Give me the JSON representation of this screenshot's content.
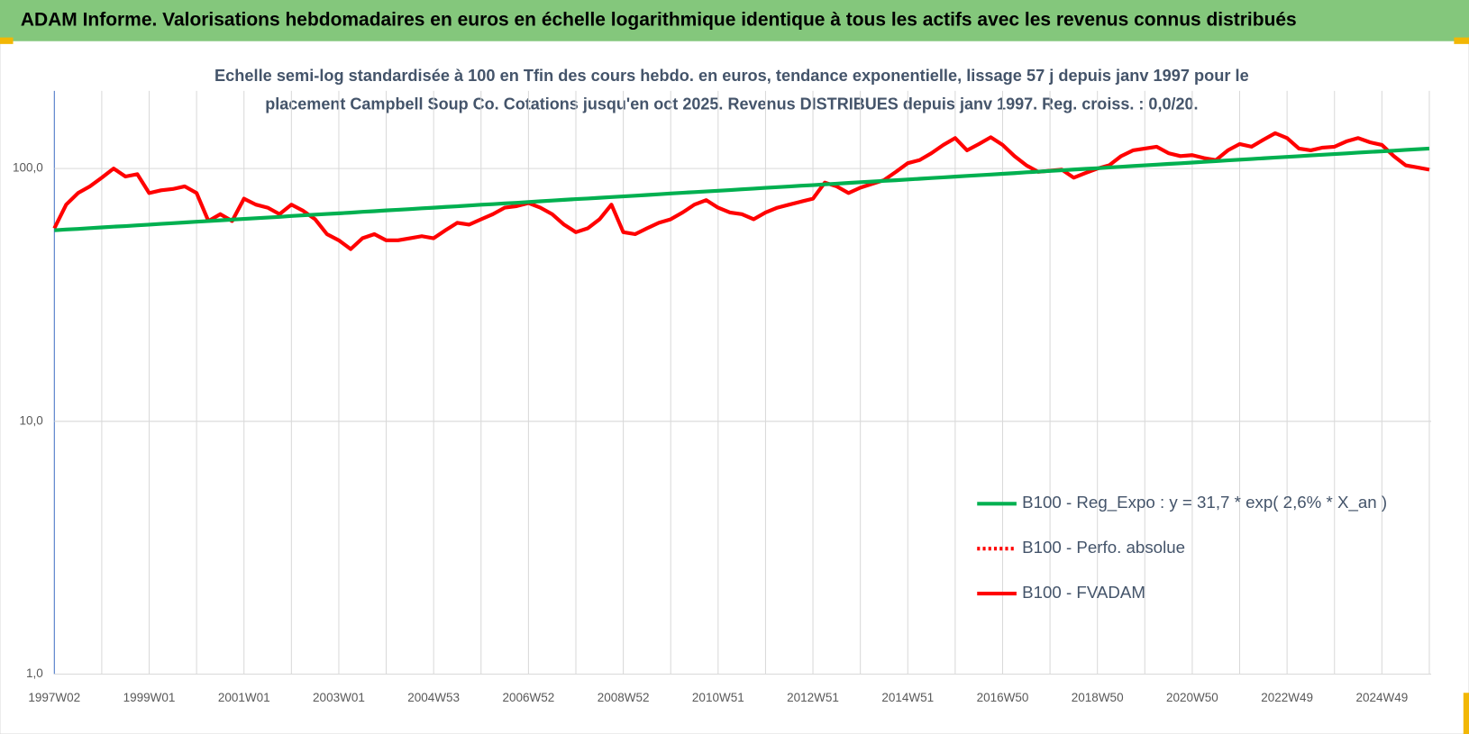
{
  "chart_data": {
    "type": "line",
    "title": "ADAM Informe. Valorisations hebdomadaires en euros en échelle logarithmique identique à tous les actifs avec les revenus connus distribués",
    "subtitle": [
      "Echelle semi-log standardisée à 100 en Tfin des cours hebdo. en euros, tendance exponentielle, lissage 57 j depuis janv 1997 pour le",
      "placement Campbell Soup Co. Cotations jusqu'en oct 2025. Revenus DISTRIBUES depuis janv 1997. Reg. croiss. : 0,0/20."
    ],
    "log_scale": true,
    "grid": true,
    "legend": "lower right",
    "ylim": [
      1,
      203
    ],
    "yticks": [
      {
        "value": 1,
        "label": "1,0"
      },
      {
        "value": 10,
        "label": "10,0"
      },
      {
        "value": 100,
        "label": "100,0"
      }
    ],
    "categories": [
      "1997W02",
      null,
      null,
      null,
      null,
      null,
      null,
      null,
      "1999W01",
      null,
      null,
      null,
      null,
      null,
      null,
      null,
      "2001W01",
      null,
      null,
      null,
      null,
      null,
      null,
      null,
      "2003W01",
      null,
      null,
      null,
      null,
      null,
      null,
      null,
      "2004W53",
      null,
      null,
      null,
      null,
      null,
      null,
      null,
      "2006W52",
      null,
      null,
      null,
      null,
      null,
      null,
      null,
      "2008W52",
      null,
      null,
      null,
      null,
      null,
      null,
      null,
      "2010W51",
      null,
      null,
      null,
      null,
      null,
      null,
      null,
      "2012W51",
      null,
      null,
      null,
      null,
      null,
      null,
      null,
      "2014W51",
      null,
      null,
      null,
      null,
      null,
      null,
      null,
      "2016W50",
      null,
      null,
      null,
      null,
      null,
      null,
      null,
      "2018W50",
      null,
      null,
      null,
      null,
      null,
      null,
      null,
      "2020W50",
      null,
      null,
      null,
      null,
      null,
      null,
      null,
      "2022W49",
      null,
      null,
      null,
      null,
      null,
      null,
      null,
      "2024W49",
      null,
      null,
      null,
      null
    ],
    "series": [
      {
        "name": "B100 - Reg_Expo : y = 31,7 * exp( 2,6% *  X_an )",
        "color": "#00b050",
        "style": "solid",
        "values": [
          57,
          57.4,
          57.7,
          58.1,
          58.5,
          58.9,
          59.2,
          59.6,
          60,
          60.4,
          60.8,
          61.2,
          61.6,
          62.0,
          62.4,
          62.8,
          63.2,
          63.6,
          64.0,
          64.4,
          64.9,
          65.3,
          65.7,
          66.1,
          66.5,
          66.9,
          67.4,
          67.8,
          68.3,
          68.7,
          69.1,
          69.6,
          70,
          70.5,
          70.9,
          71.4,
          71.9,
          72.3,
          72.8,
          73.2,
          73.7,
          74.2,
          74.7,
          75.2,
          75.7,
          76.1,
          76.6,
          77.1,
          77.6,
          78.1,
          78.6,
          79.1,
          79.7,
          80.2,
          80.7,
          81.2,
          81.7,
          82.2,
          82.8,
          83.3,
          83.9,
          84.4,
          84.9,
          85.5,
          86,
          86.6,
          87.1,
          87.7,
          88.3,
          88.8,
          89.4,
          89.9,
          90.5,
          91.1,
          91.7,
          92.3,
          92.9,
          93.5,
          94.1,
          94.7,
          95.3,
          95.9,
          96.6,
          97.2,
          97.8,
          98.4,
          99.1,
          99.7,
          100.3,
          101.0,
          101.6,
          102.3,
          103.0,
          103.6,
          104.3,
          104.9,
          105.6,
          106.3,
          107.0,
          107.7,
          108.4,
          109.1,
          109.8,
          110.5,
          111.2,
          111.9,
          112.7,
          113.4,
          114.1,
          114.8,
          115.6,
          116.3,
          117,
          117.7,
          118.5,
          119.2,
          120.0
        ]
      },
      {
        "name": "B100 - Perfo. absolue",
        "color": "#ff0000",
        "style": "dotted"
      },
      {
        "name": "B100 - FVADAM",
        "color": "#ff0000",
        "style": "solid",
        "values": [
          58,
          72,
          80,
          85,
          92,
          100,
          93,
          95,
          80,
          82,
          83,
          85,
          80,
          62,
          66,
          62,
          76,
          72,
          70,
          66,
          72,
          68,
          63,
          55,
          52,
          48,
          53,
          55,
          52,
          52,
          53,
          54,
          53,
          57,
          61,
          60,
          63,
          66,
          70,
          71,
          73,
          70,
          66,
          60,
          56,
          58,
          63,
          72,
          56,
          55,
          58,
          61,
          63,
          67,
          72,
          75,
          70,
          67,
          66,
          63,
          67,
          70,
          72,
          74,
          76,
          88,
          85,
          80,
          84,
          87,
          90,
          97,
          105,
          108,
          115,
          124,
          132,
          118,
          125,
          133,
          124,
          112,
          103,
          97,
          98,
          99,
          92,
          96,
          100,
          103,
          112,
          118,
          120,
          122,
          115,
          112,
          113,
          110,
          108,
          118,
          125,
          122,
          130,
          138,
          132,
          120,
          118,
          121,
          122,
          128,
          132,
          127,
          124,
          112,
          103,
          101,
          99
        ]
      }
    ]
  }
}
